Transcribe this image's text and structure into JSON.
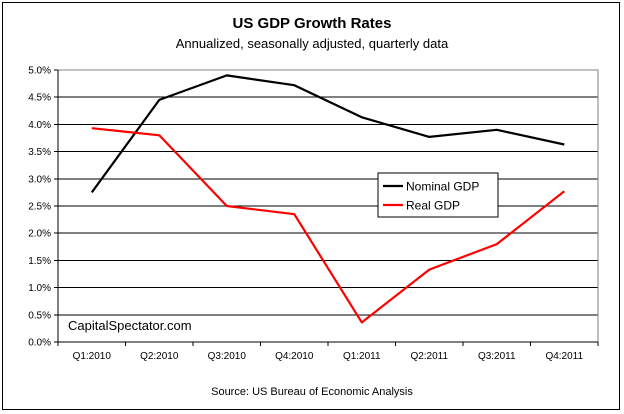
{
  "chart_data": {
    "type": "line",
    "title": "US GDP Growth Rates",
    "subtitle": "Annualized, seasonally adjusted, quarterly data",
    "source": "Source: US Bureau of Economic Analysis",
    "watermark": "CapitalSpectator.com",
    "categories": [
      "Q1:2010",
      "Q2:2010",
      "Q3:2010",
      "Q4:2010",
      "Q1:2011",
      "Q2:2011",
      "Q3:2011",
      "Q4:2011"
    ],
    "series": [
      {
        "name": "Nominal GDP",
        "color": "#000000",
        "values": [
          2.75,
          4.45,
          4.9,
          4.72,
          4.13,
          3.77,
          3.9,
          3.63
        ]
      },
      {
        "name": "Real GDP",
        "color": "#ff0000",
        "values": [
          3.93,
          3.8,
          2.5,
          2.35,
          0.36,
          1.33,
          1.8,
          2.77
        ]
      }
    ],
    "yticks": [
      "0.0%",
      "0.5%",
      "1.0%",
      "1.5%",
      "2.0%",
      "2.5%",
      "3.0%",
      "3.5%",
      "4.0%",
      "4.5%",
      "5.0%"
    ],
    "ylim": [
      0,
      5
    ],
    "grid": "horizontal",
    "legend_position": "right-center"
  }
}
